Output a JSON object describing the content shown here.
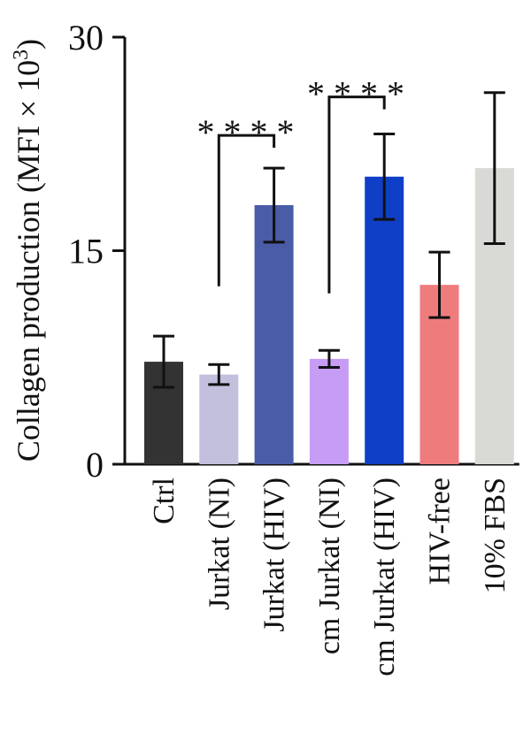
{
  "chart_data": {
    "type": "bar",
    "ylabel_main": "Collagen production (MFI × 10",
    "ylabel_exp": "3",
    "ylabel_close": ")",
    "ylim": [
      0,
      30
    ],
    "yticks": [
      {
        "value": 0,
        "label": "0"
      },
      {
        "value": 15,
        "label": "15"
      },
      {
        "value": 30,
        "label": "30"
      }
    ],
    "categories": [
      "Ctrl",
      "Jurkat (NI)",
      "Jurkat (HIV)",
      "cm Jurkat (NI)",
      "cm Jurkat (HIV)",
      "HIV-free",
      "10% FBS"
    ],
    "values": [
      7.2,
      6.3,
      18.2,
      7.4,
      20.2,
      12.6,
      20.8
    ],
    "errors": [
      1.8,
      0.7,
      2.6,
      0.6,
      3.0,
      2.3,
      5.3
    ],
    "colors": [
      "#333333",
      "#c2c0dd",
      "#4a5ba8",
      "#c79cf4",
      "#0f3fc6",
      "#ef7c7d",
      "#d9d9d6"
    ],
    "significance": [
      {
        "from": 1,
        "to": 2,
        "label": "****",
        "y_low": 12.5,
        "y_high": 23.1,
        "y_label": 24.1
      },
      {
        "from": 3,
        "to": 4,
        "label": "****",
        "y_low": 12.0,
        "y_high": 25.8,
        "y_label": 26.8
      }
    ]
  }
}
